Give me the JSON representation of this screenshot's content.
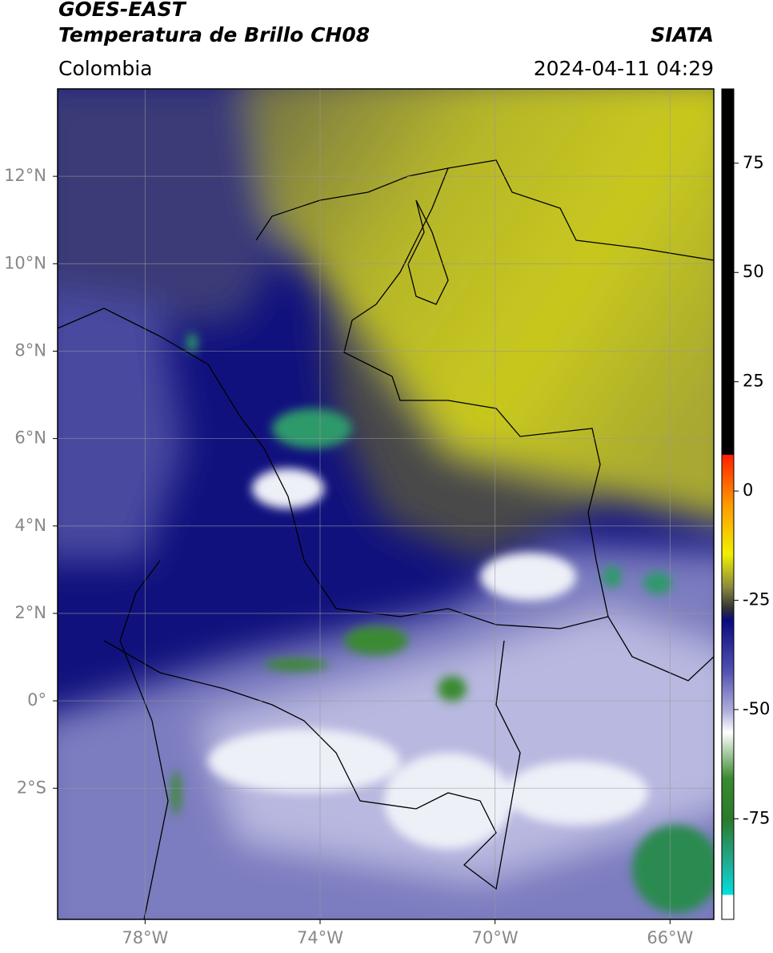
{
  "chart_data": {
    "type": "map",
    "title": "GOES-EAST",
    "subtitle": "Temperatura de Brillo CH08",
    "source": "SIATA",
    "region": "Colombia",
    "timestamp": "2024-04-11 04:29",
    "xlim": [
      -80,
      -65
    ],
    "xticks": [
      {
        "value": -78,
        "label": "78°W"
      },
      {
        "value": -74,
        "label": "74°W"
      },
      {
        "value": -70,
        "label": "70°W"
      },
      {
        "value": -66,
        "label": "66°W"
      }
    ],
    "ylim": [
      -5,
      14
    ],
    "yticks": [
      {
        "value": 12,
        "label": "12°N"
      },
      {
        "value": 10,
        "label": "10°N"
      },
      {
        "value": 8,
        "label": "8°N"
      },
      {
        "value": 6,
        "label": "6°N"
      },
      {
        "value": 4,
        "label": "4°N"
      },
      {
        "value": 2,
        "label": "2°N"
      },
      {
        "value": 0,
        "label": "0°"
      },
      {
        "value": -2,
        "label": "2°S"
      }
    ],
    "clim": [
      -98,
      92
    ],
    "cticks": [
      75,
      50,
      25,
      0,
      -25,
      -50,
      -75
    ],
    "grid": true
  }
}
